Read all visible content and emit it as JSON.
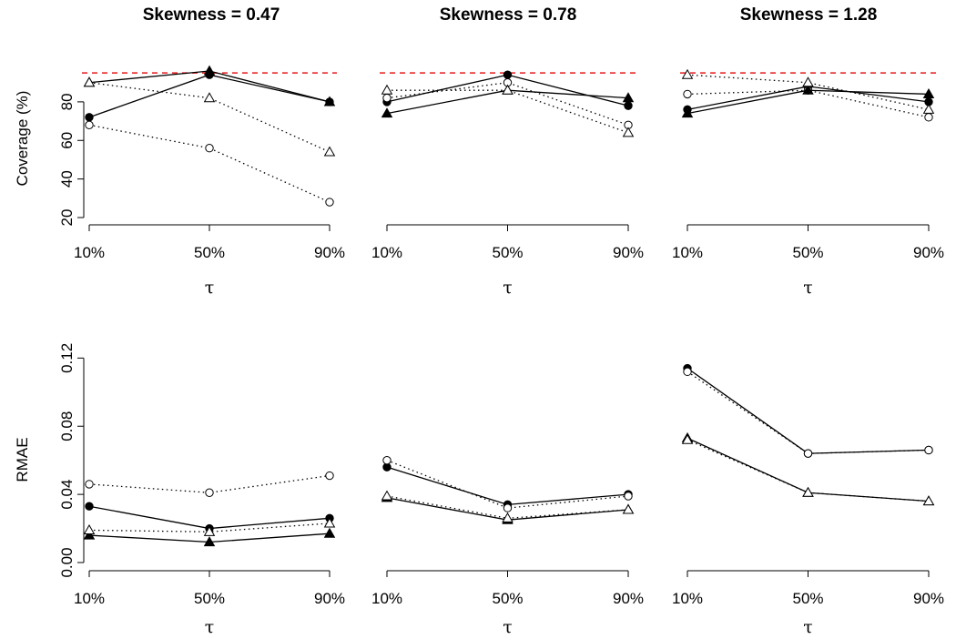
{
  "chart_data": {
    "type": "line",
    "categories": [
      "10%",
      "50%",
      "90%"
    ],
    "xlabel": "τ",
    "column_titles": [
      "Skewness =  0.47",
      "Skewness =  0.78",
      "Skewness =  1.28"
    ],
    "marker_styles": {
      "s1": {
        "marker": "filled-circle",
        "line": "solid"
      },
      "s2": {
        "marker": "open-circle",
        "line": "dotted"
      },
      "s3": {
        "marker": "filled-triangle",
        "line": "solid"
      },
      "s4": {
        "marker": "open-triangle",
        "line": "dotted"
      }
    },
    "reference_line": {
      "y": 95,
      "color": "#e41a1c",
      "style": "dashed"
    },
    "rows": [
      {
        "ylabel": "Coverage (%)",
        "ylim": [
          20,
          96
        ],
        "yticks": [
          20,
          40,
          60,
          80
        ],
        "reference_color": "#e41a1c",
        "panels": [
          {
            "series": [
              {
                "id": "s1",
                "values": [
                  72,
                  94,
                  80
                ]
              },
              {
                "id": "s2",
                "values": [
                  68,
                  56,
                  28
                ]
              },
              {
                "id": "s3",
                "values": [
                  90,
                  96,
                  80
                ]
              },
              {
                "id": "s4",
                "values": [
                  90,
                  82,
                  54
                ]
              }
            ]
          },
          {
            "series": [
              {
                "id": "s1",
                "values": [
                  80,
                  94,
                  78
                ]
              },
              {
                "id": "s2",
                "values": [
                  82,
                  90,
                  68
                ]
              },
              {
                "id": "s3",
                "values": [
                  74,
                  86,
                  82
                ]
              },
              {
                "id": "s4",
                "values": [
                  86,
                  86,
                  64
                ]
              }
            ]
          },
          {
            "series": [
              {
                "id": "s1",
                "values": [
                  76,
                  88,
                  80
                ]
              },
              {
                "id": "s2",
                "values": [
                  84,
                  86,
                  72
                ]
              },
              {
                "id": "s3",
                "values": [
                  74,
                  86,
                  84
                ]
              },
              {
                "id": "s4",
                "values": [
                  94,
                  90,
                  76
                ]
              }
            ]
          }
        ]
      },
      {
        "ylabel": "RMAE",
        "ylim": [
          0,
          0.125
        ],
        "yticks": [
          "0.00",
          "0.04",
          "0.08",
          "0.12"
        ],
        "panels": [
          {
            "series": [
              {
                "id": "s1",
                "values": [
                  0.033,
                  0.02,
                  0.026
                ]
              },
              {
                "id": "s2",
                "values": [
                  0.046,
                  0.041,
                  0.051
                ]
              },
              {
                "id": "s3",
                "values": [
                  0.016,
                  0.012,
                  0.017
                ]
              },
              {
                "id": "s4",
                "values": [
                  0.019,
                  0.018,
                  0.023
                ]
              }
            ]
          },
          {
            "series": [
              {
                "id": "s1",
                "values": [
                  0.056,
                  0.034,
                  0.04
                ]
              },
              {
                "id": "s2",
                "values": [
                  0.06,
                  0.032,
                  0.039
                ]
              },
              {
                "id": "s3",
                "values": [
                  0.038,
                  0.025,
                  0.031
                ]
              },
              {
                "id": "s4",
                "values": [
                  0.039,
                  0.026,
                  0.031
                ]
              }
            ]
          },
          {
            "series": [
              {
                "id": "s1",
                "values": [
                  0.114,
                  0.064,
                  0.066
                ]
              },
              {
                "id": "s2",
                "values": [
                  0.112,
                  0.064,
                  0.066
                ]
              },
              {
                "id": "s3",
                "values": [
                  0.073,
                  0.041,
                  0.036
                ]
              },
              {
                "id": "s4",
                "values": [
                  0.072,
                  0.041,
                  0.036
                ]
              }
            ]
          }
        ]
      }
    ]
  }
}
